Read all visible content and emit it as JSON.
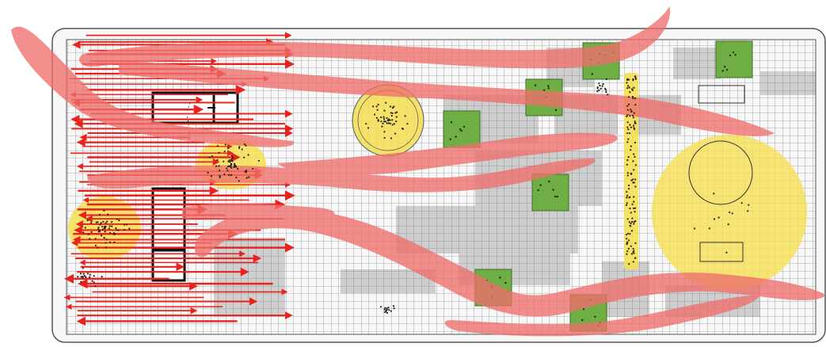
{
  "diagram": {
    "kind": "site-plan-movement-analysis",
    "colors": {
      "background": "#ffffff",
      "plan_fill": "#f4f4f4",
      "plan_outline": "#555555",
      "grid_line": "#6e6e6e",
      "paving_gray": "#c8c8c8",
      "flow_band": "#ef6f6c",
      "arrow_red": "#e8231f",
      "activity_yellow": "#f5df52",
      "planter_green": "#6fae45",
      "building_stroke": "#111111",
      "dot_black": "#222222"
    },
    "counts": {
      "arrows_left_block": 60,
      "green_planters": 7,
      "activity_zones": 5,
      "flow_bands": 7
    }
  }
}
